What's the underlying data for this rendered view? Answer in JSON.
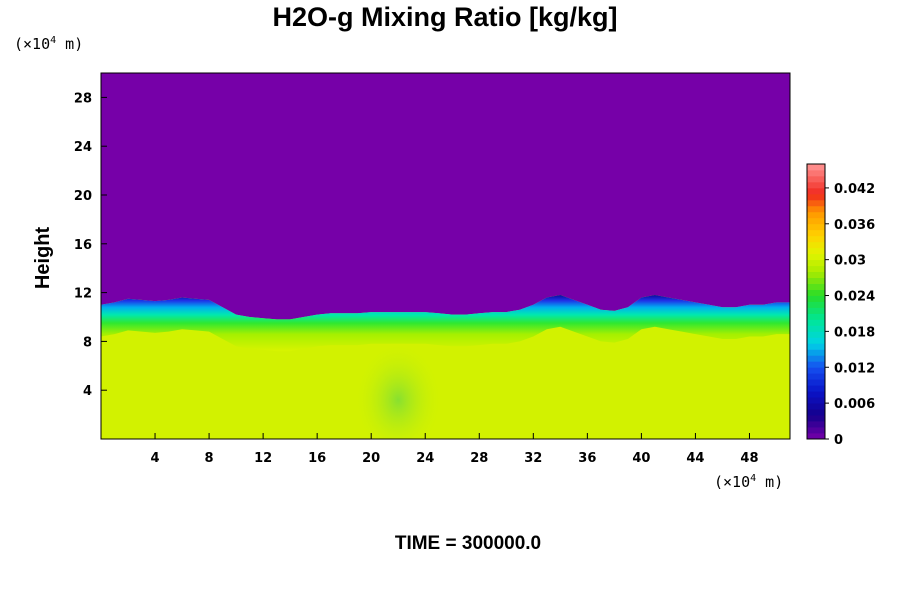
{
  "chart_data": {
    "type": "heatmap",
    "title": "H2O-g Mixing Ratio [kg/kg]",
    "ylabel": "Height",
    "xlabel": "",
    "x_unit_prefix": "(×10",
    "x_unit_exp": "4",
    "x_unit_suffix": " m)",
    "y_unit_prefix": "(×10",
    "y_unit_exp": "4",
    "y_unit_suffix": " m)",
    "xlim": [
      0,
      51
    ],
    "ylim": [
      0,
      30
    ],
    "x_ticks": [
      4,
      8,
      12,
      16,
      20,
      24,
      28,
      32,
      36,
      40,
      44,
      48
    ],
    "y_ticks": [
      4,
      8,
      12,
      16,
      20,
      24,
      28
    ],
    "x_tick_labels": [
      "4",
      "8",
      "12",
      "16",
      "20",
      "24",
      "28",
      "32",
      "36",
      "40",
      "44",
      "48"
    ],
    "y_tick_labels": [
      "4",
      "8",
      "12",
      "16",
      "20",
      "24",
      "28"
    ],
    "colorbar": {
      "range": [
        0,
        0.046
      ],
      "ticks": [
        0,
        0.006,
        0.012,
        0.018,
        0.024,
        0.03,
        0.036,
        0.042
      ],
      "tick_labels": [
        "0",
        "0.006",
        "0.012",
        "0.018",
        "0.024",
        "0.03",
        "0.036",
        "0.042"
      ]
    },
    "upper_layer_value": 0.0,
    "lower_layer_value": 0.03,
    "boundary_height": [
      11.0,
      11.2,
      11.5,
      11.4,
      11.3,
      11.4,
      11.6,
      11.5,
      11.4,
      10.8,
      10.2,
      10.0,
      9.9,
      9.8,
      9.8,
      10.0,
      10.2,
      10.3,
      10.3,
      10.3,
      10.4,
      10.4,
      10.4,
      10.4,
      10.4,
      10.3,
      10.2,
      10.2,
      10.3,
      10.4,
      10.4,
      10.6,
      11.0,
      11.6,
      11.8,
      11.4,
      11.0,
      10.6,
      10.5,
      10.8,
      11.6,
      11.8,
      11.6,
      11.4,
      11.2,
      11.0,
      10.8,
      10.8,
      11.0,
      11.0,
      11.2,
      11.2
    ],
    "time_label": "TIME = 300000.0"
  }
}
